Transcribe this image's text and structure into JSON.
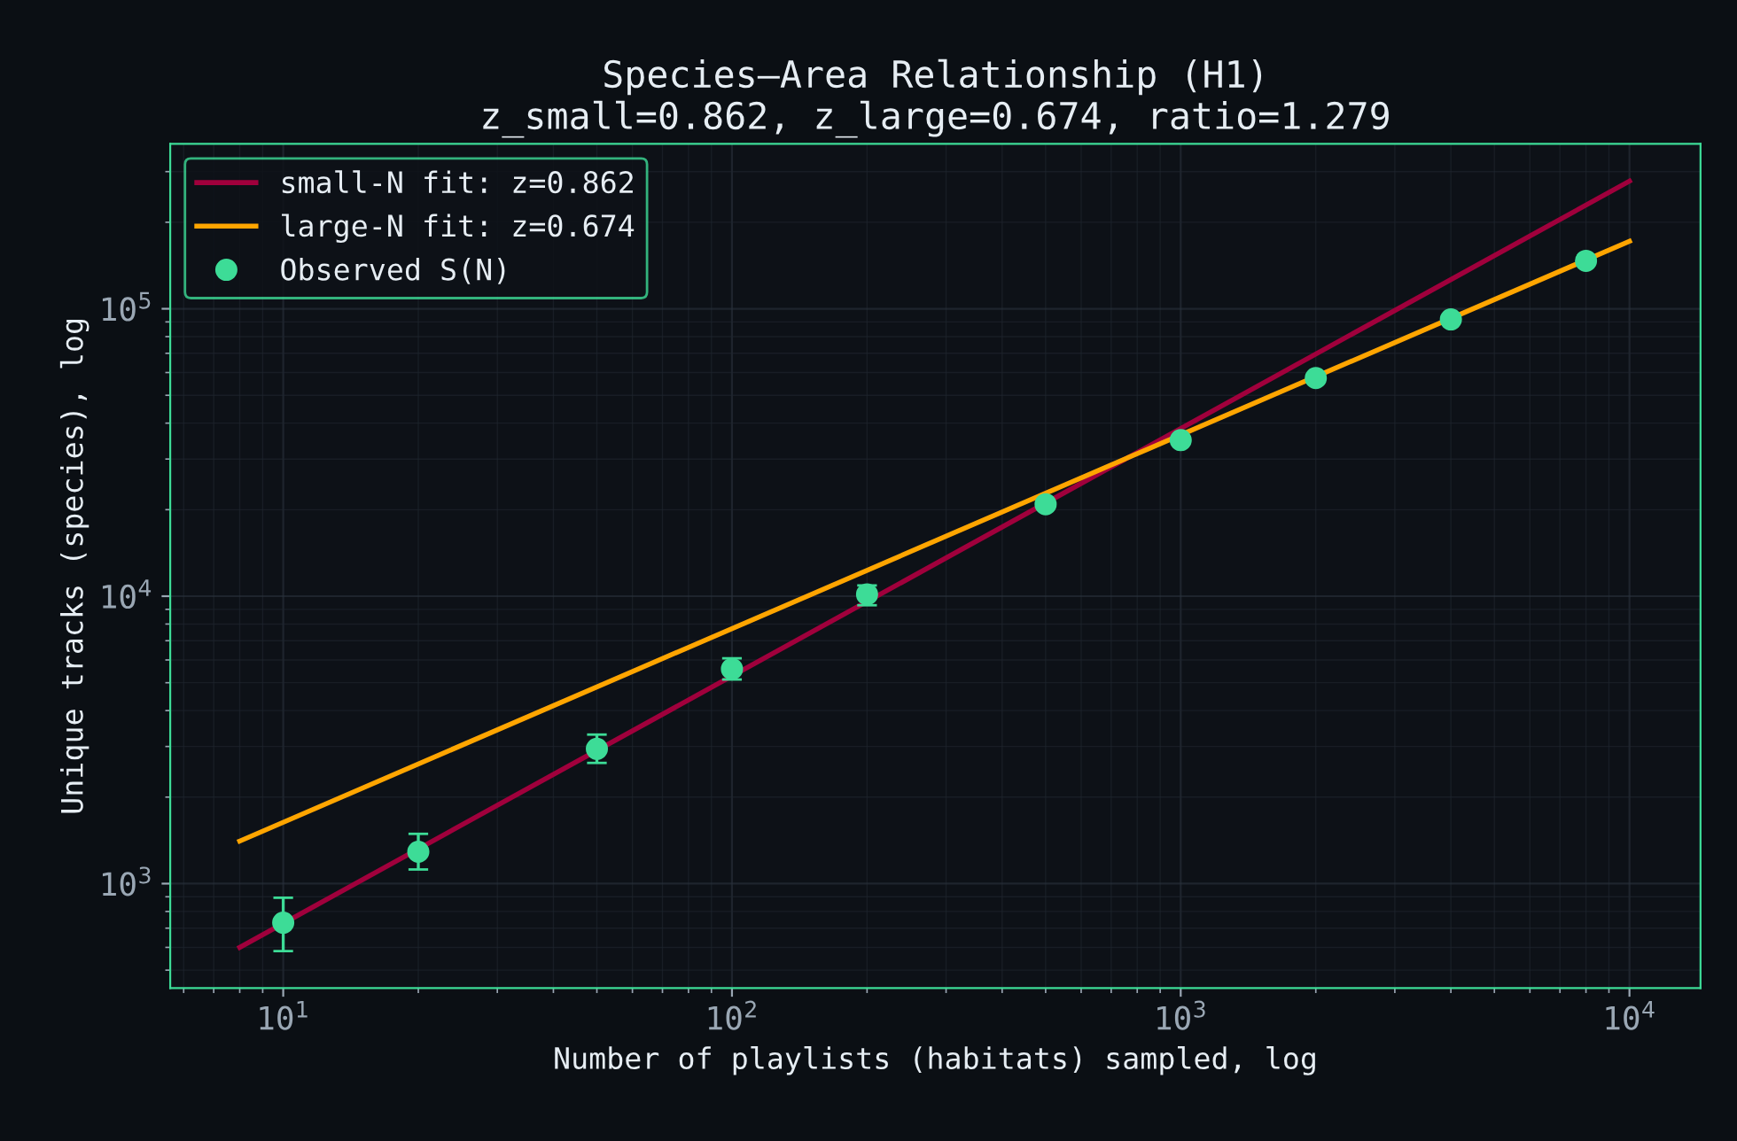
{
  "chart_data": {
    "type": "scatter",
    "title": "Species–Area Relationship (H1)\nz_small=0.862, z_large=0.674, ratio=1.279",
    "xlabel": "Number of playlists (habitats) sampled, log",
    "ylabel": "Unique tracks (species), log",
    "log": "xy",
    "grid": true,
    "legend": "top left",
    "xlim": [
      5.6,
      14400
    ],
    "ylim": [
      433,
      375000
    ],
    "xticks": [
      {
        "value": 10,
        "label": "10$^{1}$"
      },
      {
        "value": 100,
        "label": "10$^{2}$"
      },
      {
        "value": 1000,
        "label": "10$^{3}$"
      },
      {
        "value": 10000,
        "label": "10$^{4}$"
      }
    ],
    "yticks": [
      {
        "value": 1000,
        "label": "10$^{3}$"
      },
      {
        "value": 10000,
        "label": "10$^{4}$"
      },
      {
        "value": 100000,
        "label": "10$^{5}$"
      }
    ],
    "series": [
      {
        "name": "small-N fit: z=0.862",
        "type": "line",
        "marker": "none",
        "color": "#a0003c",
        "x": [
          8,
          10000
        ],
        "values": [
          600,
          278000
        ]
      },
      {
        "name": "large-N fit: z=0.674",
        "type": "line",
        "marker": "none",
        "color": "#ffa500",
        "x": [
          8,
          10000
        ],
        "values": [
          1406,
          171800
        ]
      },
      {
        "name": "Observed S(N)",
        "marker": "circle",
        "color": "#3ddc97",
        "x": [
          10,
          20,
          50,
          100,
          200,
          500,
          1000,
          2000,
          4000,
          8000
        ],
        "values": [
          731,
          1291,
          2944,
          5580,
          10150,
          20900,
          34900,
          57400,
          91800,
          146800
        ],
        "errors": [
          [
            582,
            893
          ],
          [
            1120,
            1490
          ],
          [
            2630,
            3300
          ],
          [
            5130,
            6080
          ],
          [
            9300,
            10900
          ],
          null,
          null,
          null,
          null,
          null
        ]
      }
    ]
  }
}
